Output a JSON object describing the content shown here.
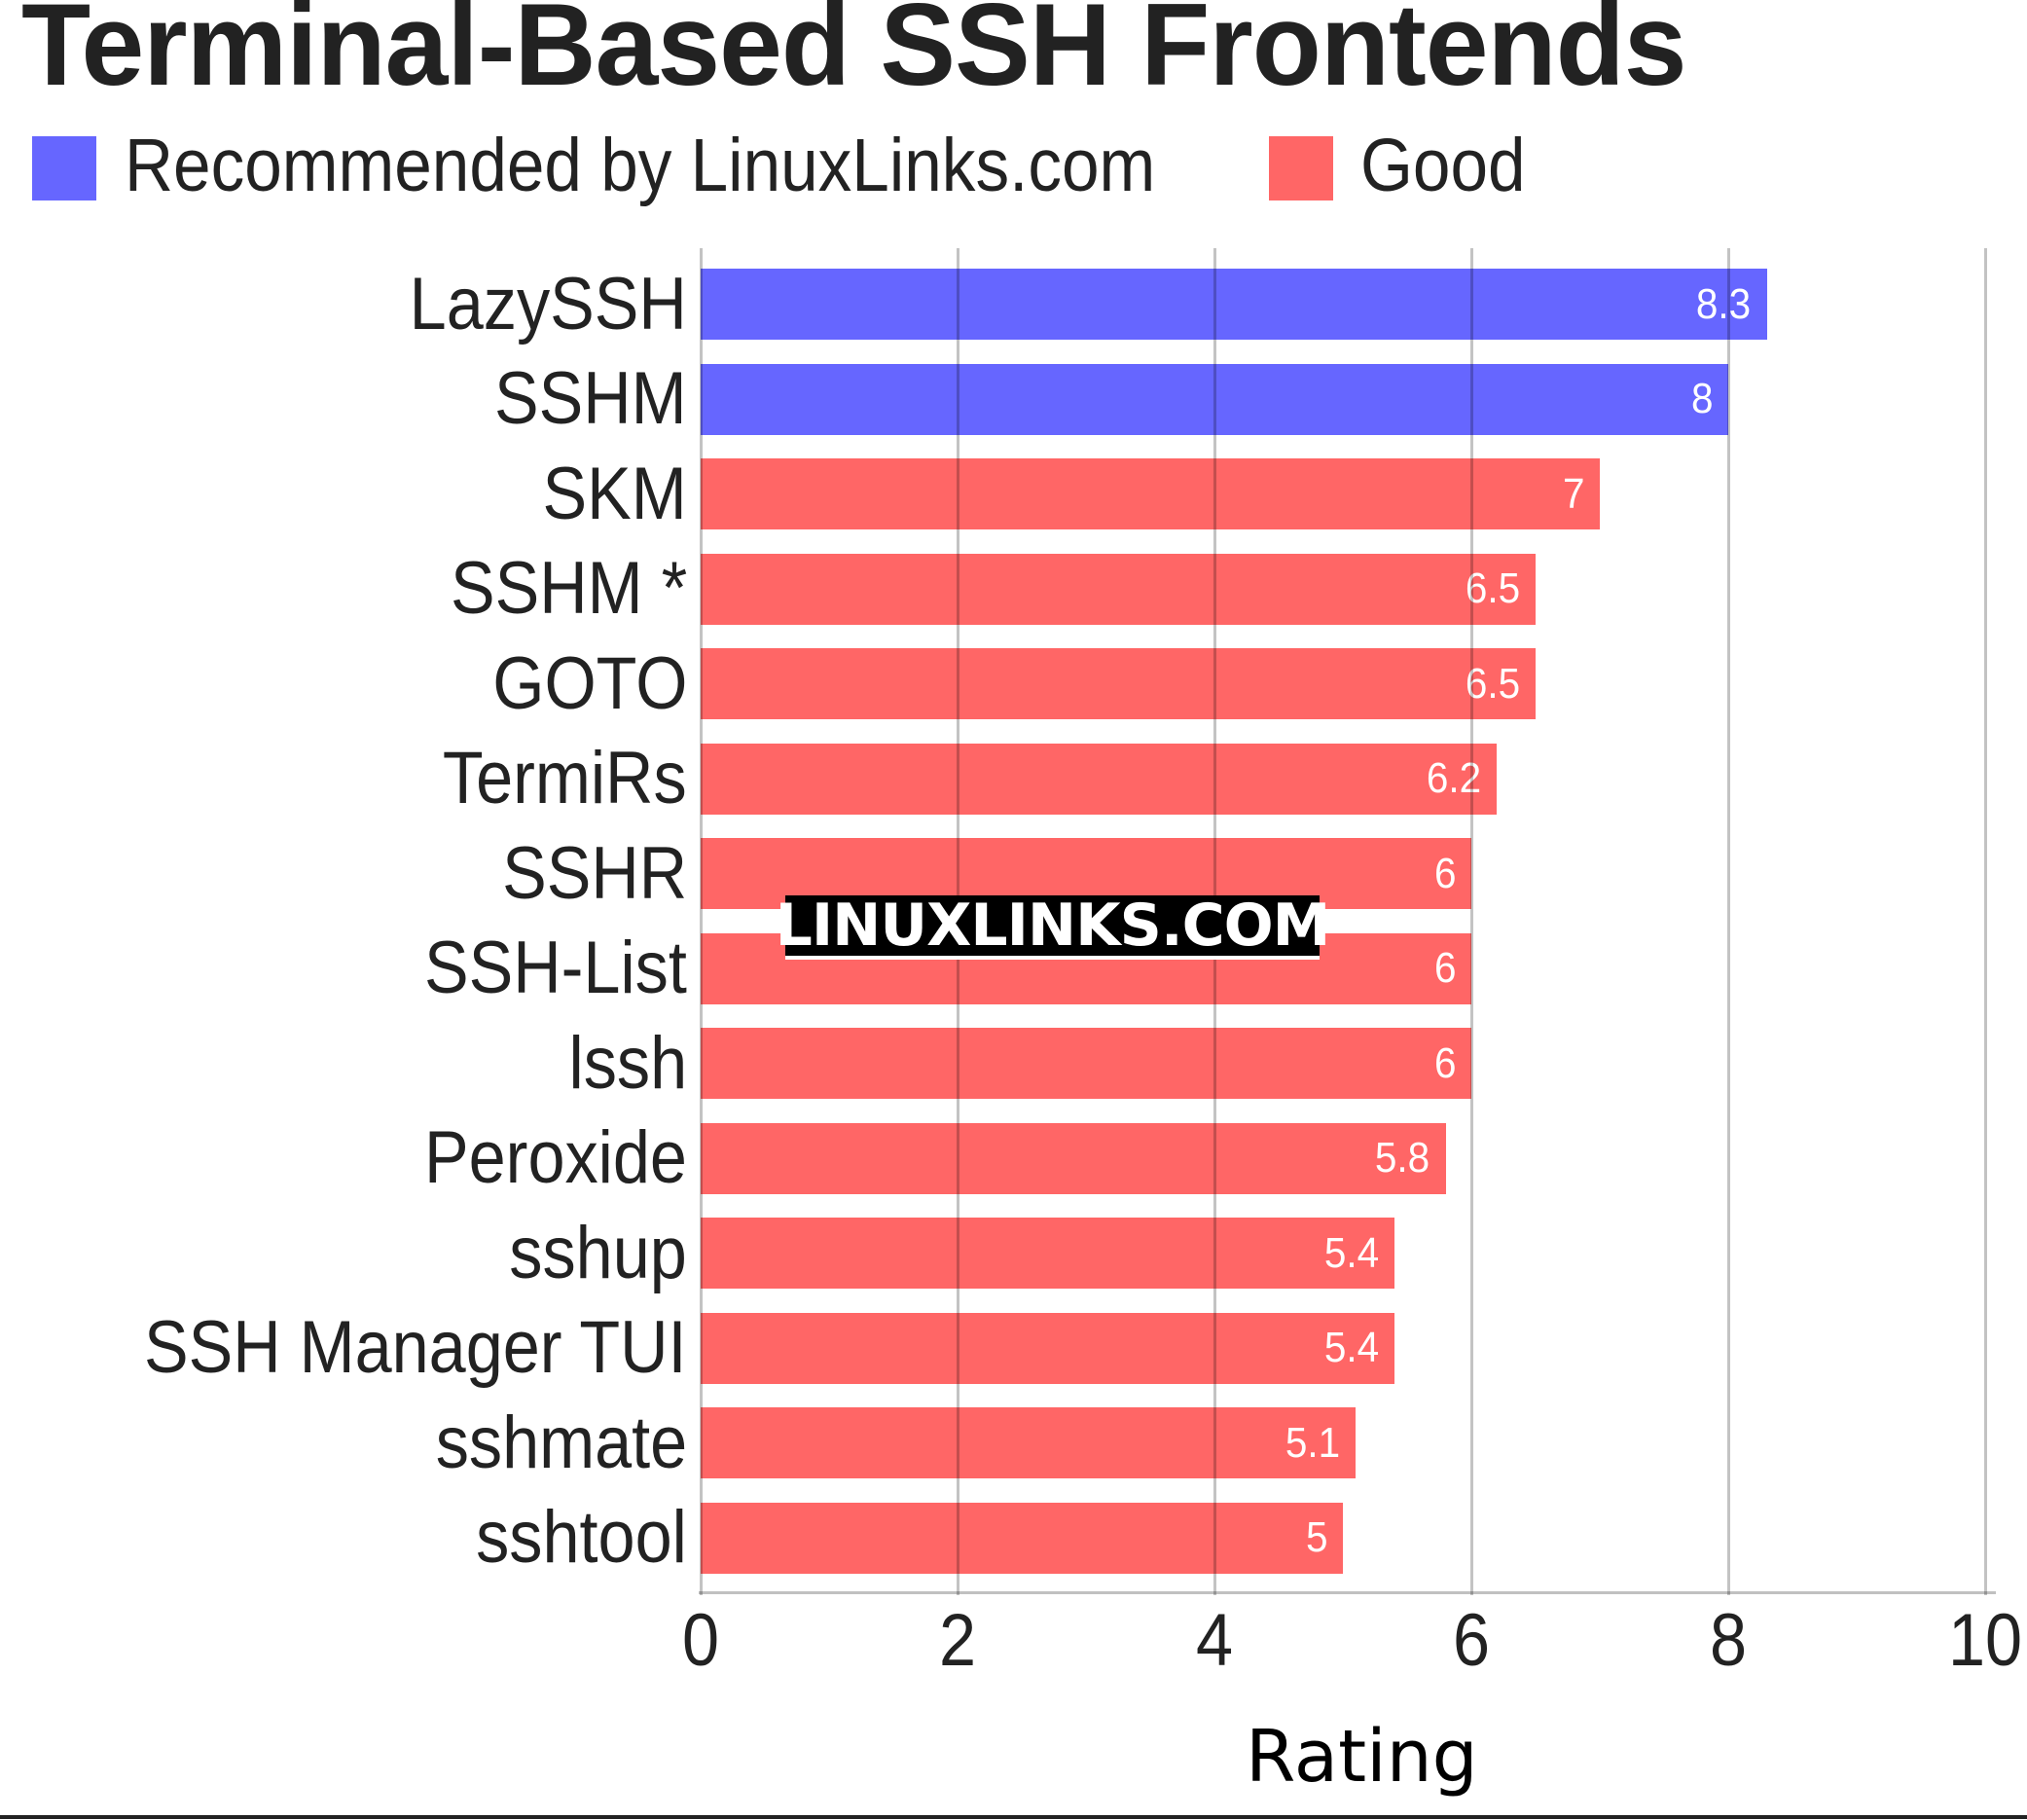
{
  "chart_data": {
    "type": "bar",
    "orientation": "horizontal",
    "title": "Terminal-Based SSH Frontends",
    "xlabel": "Rating",
    "ylabel": "",
    "xlim": [
      0,
      10
    ],
    "xticks": [
      "0",
      "2",
      "4",
      "6",
      "8",
      "10"
    ],
    "grid": true,
    "legend_position": "top-left",
    "legend": [
      {
        "label": "Recommended by LinuxLinks.com",
        "color": "#6666ff"
      },
      {
        "label": "Good",
        "color": "#ff6666"
      }
    ],
    "categories": [
      "LazySSH",
      "SSHM",
      "SKM",
      "SSHM *",
      "GOTO",
      "TermiRs",
      "SSHR",
      "SSH-List",
      "lssh",
      "Peroxide",
      "sshup",
      "SSH Manager TUI",
      "sshmate",
      "sshtool"
    ],
    "values": [
      8.3,
      8,
      7,
      6.5,
      6.5,
      6.2,
      6,
      6,
      6,
      5.8,
      5.4,
      5.4,
      5.1,
      5
    ],
    "value_labels": [
      "8.3",
      "8",
      "7",
      "6.5",
      "6.5",
      "6.2",
      "6",
      "6",
      "6",
      "5.8",
      "5.4",
      "5.4",
      "5.1",
      "5"
    ],
    "groups": [
      "Recommended by LinuxLinks.com",
      "Recommended by LinuxLinks.com",
      "Good",
      "Good",
      "Good",
      "Good",
      "Good",
      "Good",
      "Good",
      "Good",
      "Good",
      "Good",
      "Good",
      "Good"
    ],
    "annotations": [
      "LINUXLINKS.COM"
    ]
  },
  "header": {
    "title": "Terminal-Based SSH Frontends"
  },
  "legend": {
    "items": [
      {
        "label": "Recommended by LinuxLinks.com",
        "color": "#6666ff"
      },
      {
        "label": "Good",
        "color": "#ff6666"
      }
    ]
  },
  "axis": {
    "xlabel": "Rating",
    "ticks": [
      "0",
      "2",
      "4",
      "6",
      "8",
      "10"
    ]
  },
  "watermark": {
    "text": "LINUXLINKS.COM"
  },
  "colors": {
    "recommended": "#6666ff",
    "good": "#ff6666",
    "grid": "#c0c0c0",
    "text": "#222222"
  }
}
